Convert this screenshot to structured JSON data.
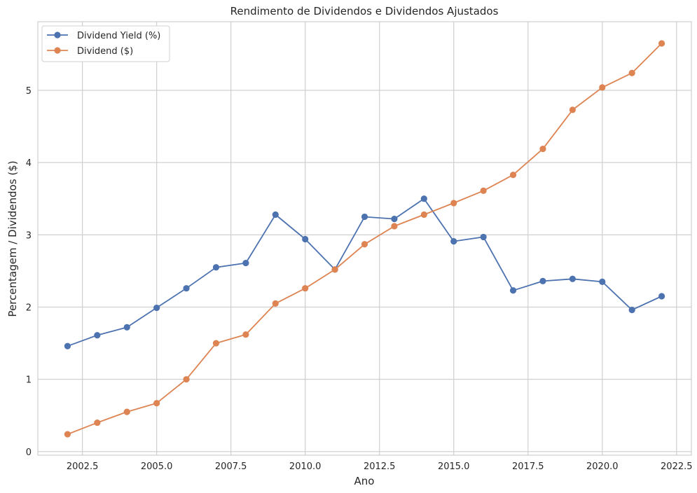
{
  "chart_data": {
    "type": "line",
    "title": "Rendimento de Dividendos e Dividendos Ajustados",
    "xlabel": "Ano",
    "ylabel": "Percentagem / Dividendos ($)",
    "xlim": [
      2001.0,
      2023.0
    ],
    "ylim": [
      -0.05,
      5.95
    ],
    "x_ticks": [
      2002.5,
      2005.0,
      2007.5,
      2010.0,
      2012.5,
      2015.0,
      2017.5,
      2020.0,
      2022.5
    ],
    "x_tick_labels": [
      "2002.5",
      "2005.0",
      "2007.5",
      "2010.0",
      "2012.5",
      "2015.0",
      "2017.5",
      "2020.0",
      "2022.5"
    ],
    "y_ticks": [
      0,
      1,
      2,
      3,
      4,
      5
    ],
    "y_tick_labels": [
      "0",
      "1",
      "2",
      "3",
      "4",
      "5"
    ],
    "grid": true,
    "legend_position": "top-left",
    "x": [
      2002,
      2003,
      2004,
      2005,
      2006,
      2007,
      2008,
      2009,
      2010,
      2011,
      2012,
      2013,
      2014,
      2015,
      2016,
      2017,
      2018,
      2019,
      2020,
      2021,
      2022
    ],
    "series": [
      {
        "name": "Dividend Yield (%)",
        "color": "#4c72b0",
        "values": [
          1.46,
          1.61,
          1.72,
          1.99,
          2.26,
          2.55,
          2.61,
          3.28,
          2.94,
          2.52,
          3.25,
          3.22,
          3.5,
          2.91,
          2.97,
          2.23,
          2.36,
          2.39,
          2.35,
          1.96,
          2.15
        ]
      },
      {
        "name": "Dividend ($)",
        "color": "#dd8452",
        "values": [
          0.24,
          0.4,
          0.55,
          0.67,
          1.0,
          1.5,
          1.62,
          2.05,
          2.26,
          2.52,
          2.87,
          3.12,
          3.28,
          3.44,
          3.61,
          3.83,
          4.19,
          4.73,
          5.04,
          5.24,
          5.65
        ]
      }
    ]
  }
}
